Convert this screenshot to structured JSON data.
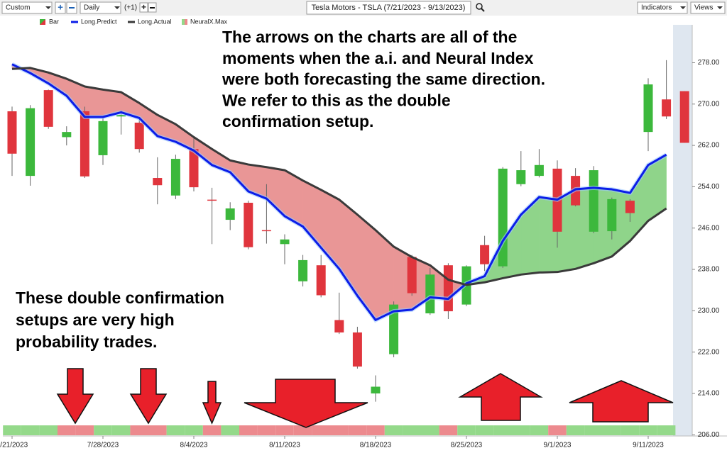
{
  "toolbar": {
    "items": [
      "Custom",
      "Daily",
      "(+1)",
      "Indicators",
      "Views"
    ]
  },
  "chart_data": {
    "type": "candlestick",
    "title": "Tesla Motors - TSLA (7/21/2023 - 9/13/2023)",
    "ohlc_name": "Bar",
    "categories": [
      "7/21/2023",
      null,
      null,
      null,
      null,
      "7/28/2023",
      null,
      null,
      null,
      null,
      "8/4/2023",
      null,
      null,
      null,
      null,
      "8/11/2023",
      null,
      null,
      null,
      null,
      "8/18/2023",
      null,
      null,
      null,
      null,
      "8/25/2023",
      null,
      null,
      null,
      null,
      "9/1/2023",
      null,
      null,
      null,
      null,
      "9/11/2023",
      null,
      null
    ],
    "open": [
      268.6,
      256.1,
      272.7,
      263.6,
      268.6,
      260.1,
      267.6,
      266.4,
      255.7,
      252.3,
      261.3,
      251.5,
      247.6,
      250.9,
      245.6,
      242.9,
      235.7,
      238.8,
      228.2,
      225.8,
      214.0,
      221.6,
      240.4,
      229.5,
      238.8,
      231.2,
      242.7,
      238.6,
      254.5,
      256.1,
      257.5,
      256.1,
      245.3,
      245.4,
      251.3,
      264.6,
      270.9,
      272.5
    ],
    "high": [
      269.5,
      269.8,
      272.8,
      265.7,
      269.5,
      267.3,
      268.8,
      267.2,
      259.7,
      260.2,
      263.4,
      253.8,
      251.0,
      251.3,
      254.5,
      244.8,
      240.8,
      240.8,
      233.5,
      226.9,
      217.5,
      231.8,
      240.8,
      238.3,
      239.2,
      238.8,
      244.5,
      257.8,
      260.9,
      261.3,
      259.1,
      257.6,
      258.0,
      251.9,
      251.6,
      275.0,
      278.5,
      272.5
    ],
    "low": [
      256.1,
      254.2,
      265.2,
      262.0,
      255.7,
      258.2,
      264.1,
      260.6,
      250.6,
      251.6,
      253.1,
      242.9,
      245.6,
      241.9,
      243.0,
      239.0,
      234.7,
      232.6,
      225.5,
      218.8,
      212.4,
      221.0,
      232.9,
      229.2,
      228.4,
      230.9,
      237.7,
      238.3,
      254.1,
      255.8,
      242.2,
      250.2,
      245.0,
      243.8,
      247.2,
      260.9,
      267.1,
      262.5
    ],
    "close": [
      260.4,
      269.2,
      265.6,
      264.6,
      256.0,
      266.7,
      267.9,
      261.3,
      254.3,
      259.4,
      253.9,
      251.4,
      249.8,
      242.3,
      245.5,
      243.8,
      239.8,
      233.0,
      225.8,
      219.2,
      215.3,
      231.2,
      233.4,
      237.0,
      229.9,
      238.6,
      239.0,
      257.5,
      257.2,
      258.2,
      245.3,
      250.4,
      257.2,
      251.6,
      248.9,
      273.8,
      267.6,
      262.5
    ],
    "up_color": "#3cb83c",
    "down_color": "#e0353d",
    "series": [
      {
        "name": "Long.Predict",
        "color": "#0b1de8",
        "values": [
          277.7,
          276.0,
          274.0,
          271.6,
          267.5,
          267.5,
          268.4,
          267.3,
          263.8,
          262.7,
          261.0,
          258.2,
          256.8,
          253.1,
          251.7,
          248.3,
          246.3,
          242.2,
          238.1,
          232.9,
          228.2,
          229.9,
          230.2,
          232.6,
          232.3,
          235.3,
          236.7,
          243.5,
          248.6,
          252.0,
          251.5,
          253.5,
          253.8,
          253.5,
          252.8,
          258.2,
          260.2,
          null
        ]
      },
      {
        "name": "Long.Actual",
        "color": "#3a3a3a",
        "values": [
          276.8,
          277.0,
          276.1,
          274.9,
          273.4,
          272.8,
          272.3,
          270.2,
          267.9,
          266.1,
          263.6,
          261.3,
          259.1,
          258.3,
          257.8,
          257.2,
          255.2,
          253.4,
          251.5,
          248.6,
          245.6,
          242.4,
          240.4,
          238.8,
          236.0,
          235.0,
          235.5,
          236.3,
          237.0,
          237.4,
          237.5,
          238.1,
          239.2,
          240.5,
          243.5,
          247.4,
          249.8,
          null
        ]
      }
    ],
    "band_colors": {
      "above": "#8fd48a",
      "below": "#e99696"
    },
    "signal": {
      "name": "NeuralX.Max",
      "up_color": "#94d98a",
      "down_color": "#ec8a8e",
      "values": [
        1,
        1,
        1,
        -1,
        -1,
        1,
        1,
        -1,
        -1,
        1,
        1,
        -1,
        1,
        -1,
        -1,
        -1,
        -1,
        -1,
        -1,
        -1,
        -1,
        1,
        1,
        1,
        -1,
        1,
        1,
        1,
        1,
        1,
        -1,
        1,
        1,
        1,
        1,
        1,
        1,
        null
      ]
    },
    "ylim": [
      205.9,
      285.2
    ],
    "yticks": [
      {
        "value": 206,
        "label": "206.00"
      },
      {
        "value": 214,
        "label": "214.00"
      },
      {
        "value": 222,
        "label": "222.00"
      },
      {
        "value": 230,
        "label": "230.00"
      },
      {
        "value": 238,
        "label": "238.00"
      },
      {
        "value": 246,
        "label": "246.00"
      },
      {
        "value": 254,
        "label": "254.00"
      },
      {
        "value": 262,
        "label": "262.00"
      },
      {
        "value": 270,
        "label": "270.00"
      },
      {
        "value": 278,
        "label": "278.00"
      }
    ],
    "annotations": [
      [
        "The arrows on the charts are all of the",
        "moments when the a.i. and Neural Index",
        "were both forecasting the same direction.",
        "We refer to this as the double",
        "confirmation setup."
      ],
      [
        "These double confirmation",
        "setups are very high",
        "probability trades."
      ]
    ]
  }
}
